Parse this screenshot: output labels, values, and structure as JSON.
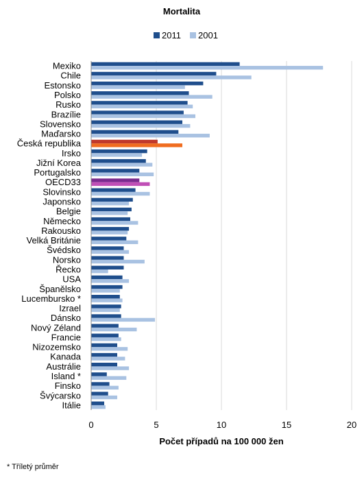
{
  "chart_data": {
    "type": "bar",
    "orientation": "horizontal",
    "title": "Mortalita",
    "xlabel": "Počet případů na 100 000 žen",
    "xlim": [
      0,
      20
    ],
    "xticks": [
      0,
      5,
      10,
      15,
      20
    ],
    "grid": true,
    "legend_position": "top",
    "categories": [
      "Mexiko",
      "Chile",
      "Estonsko",
      "Polsko",
      "Rusko",
      "Brazílie",
      "Slovensko",
      "Maďarsko",
      "Česká republika",
      "Irsko",
      "Jižní Korea",
      "Portugalsko",
      "OECD33",
      "Slovinsko",
      "Japonsko",
      "Belgie",
      "Německo",
      "Rakousko",
      "Velká Británie",
      "Švédsko",
      "Norsko",
      "Řecko",
      "USA",
      "Španělsko",
      "Lucembursko *",
      "Izrael",
      "Dánsko",
      "Nový Zéland",
      "Francie",
      "Nizozemsko",
      "Kanada",
      "Austrálie",
      "Island *",
      "Finsko",
      "Švýcarsko",
      "Itálie"
    ],
    "series": [
      {
        "name": "2011",
        "color": "#1f4e8c",
        "values": [
          11.4,
          9.6,
          8.6,
          7.5,
          7.4,
          7.1,
          7.0,
          6.7,
          5.1,
          4.3,
          4.2,
          3.7,
          3.7,
          3.4,
          3.2,
          3.1,
          3.0,
          2.9,
          2.7,
          2.5,
          2.5,
          2.5,
          2.4,
          2.4,
          2.2,
          2.3,
          2.3,
          2.1,
          2.1,
          2.0,
          2.0,
          2.0,
          1.2,
          1.4,
          1.3,
          1.0
        ]
      },
      {
        "name": "2001",
        "color": "#a9c2e2",
        "values": [
          17.8,
          12.3,
          7.2,
          9.3,
          7.8,
          8.0,
          7.6,
          9.1,
          7.0,
          3.9,
          4.7,
          4.8,
          4.5,
          4.5,
          2.9,
          2.8,
          3.6,
          2.8,
          3.6,
          2.9,
          4.1,
          1.3,
          2.9,
          2.2,
          2.4,
          2.2,
          4.9,
          3.5,
          2.3,
          2.8,
          2.6,
          2.9,
          2.7,
          2.1,
          2.0,
          1.1
        ]
      }
    ],
    "highlight": {
      "Česká republika": {
        "2011": "#c0392b",
        "2001": "#f06c1f"
      },
      "OECD33": {
        "2011": "#7b2a8e",
        "2001": "#c04fb6"
      }
    }
  },
  "footnote": "* Tříletý průměr"
}
